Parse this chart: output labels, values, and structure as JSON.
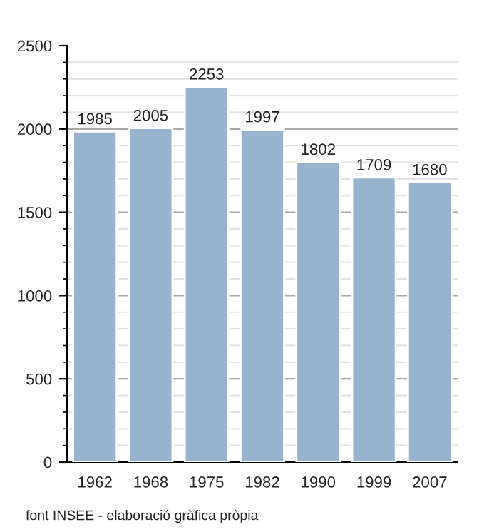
{
  "chart_data": {
    "type": "bar",
    "categories": [
      "1962",
      "1968",
      "1975",
      "1982",
      "1990",
      "1999",
      "2007"
    ],
    "values": [
      1985,
      2005,
      2253,
      1997,
      1802,
      1709,
      1680
    ],
    "color": "#98b3cd",
    "ylim": [
      0,
      2500
    ],
    "yticks": [
      0,
      500,
      1000,
      1500,
      2000,
      2500
    ],
    "grid": "y",
    "data_labels": true,
    "annotations": [
      "font INSEE - elaboració gràfica pròpia"
    ]
  }
}
